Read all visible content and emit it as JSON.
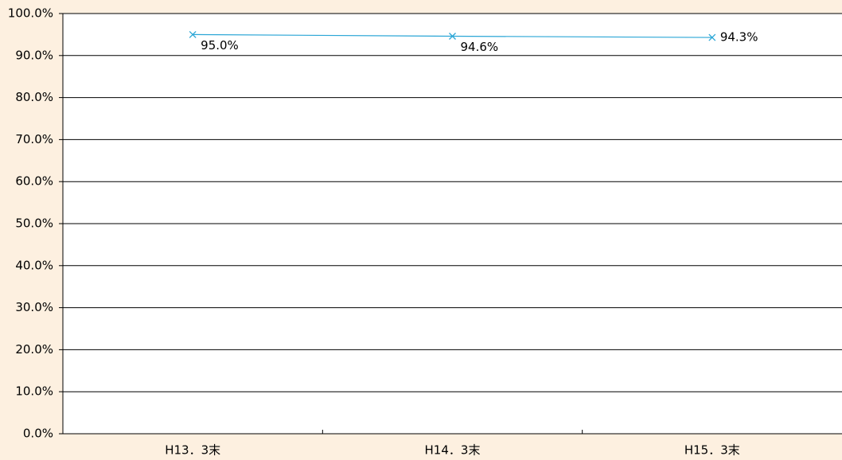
{
  "chart_data": {
    "type": "line",
    "categories": [
      "H13．3末",
      "H14．3末",
      "H15．3末"
    ],
    "series": [
      {
        "name": null,
        "color": "#2ba6d6",
        "values": [
          95.0,
          94.6,
          94.3
        ],
        "value_labels": [
          "95.0%",
          "94.6%",
          "94.3%"
        ]
      }
    ],
    "ylim": [
      0,
      100
    ],
    "yticks": [
      {
        "value": 0,
        "label": "0.0%"
      },
      {
        "value": 10,
        "label": "10.0%"
      },
      {
        "value": 20,
        "label": "20.0%"
      },
      {
        "value": 30,
        "label": "30.0%"
      },
      {
        "value": 40,
        "label": "40.0%"
      },
      {
        "value": 50,
        "label": "50.0%"
      },
      {
        "value": 60,
        "label": "60.0%"
      },
      {
        "value": 70,
        "label": "70.0%"
      },
      {
        "value": 80,
        "label": "80.0%"
      },
      {
        "value": 90,
        "label": "90.0%"
      },
      {
        "value": 100,
        "label": "100.0%"
      }
    ],
    "grid": true
  }
}
